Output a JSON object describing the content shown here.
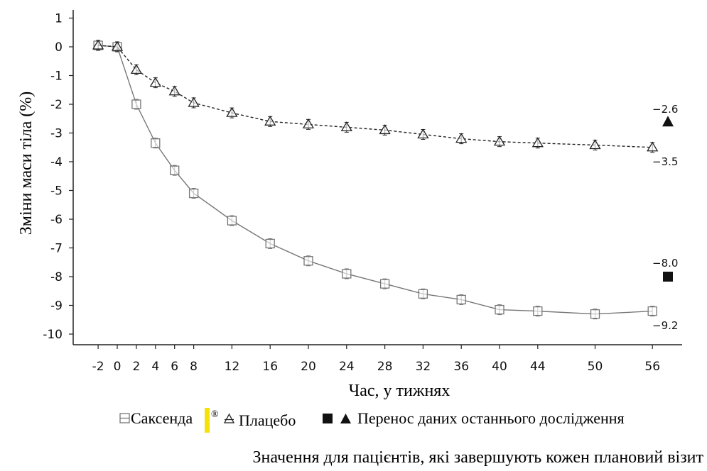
{
  "chart_data": {
    "type": "line",
    "xlabel": "Час, у тижнях",
    "ylabel": "Зміни маси тіла (%)",
    "x_ticks": [
      -2,
      0,
      2,
      4,
      6,
      8,
      12,
      16,
      20,
      24,
      28,
      32,
      36,
      40,
      44,
      50,
      56
    ],
    "ylim": [
      -10,
      1
    ],
    "y_ticks": [
      1,
      0,
      -1,
      -2,
      -3,
      -4,
      -5,
      -6,
      -7,
      -8,
      -9,
      -10
    ],
    "series": [
      {
        "name": "Саксенда®",
        "marker": "square-open",
        "line_style": "solid",
        "color": "#777777",
        "x": [
          -2,
          0,
          2,
          4,
          6,
          8,
          12,
          16,
          20,
          24,
          28,
          32,
          36,
          40,
          44,
          50,
          56
        ],
        "values": [
          0.05,
          0.0,
          -2.0,
          -3.35,
          -4.3,
          -5.1,
          -6.05,
          -6.85,
          -7.45,
          -7.9,
          -8.25,
          -8.6,
          -8.8,
          -9.15,
          -9.2,
          -9.3,
          -9.2
        ]
      },
      {
        "name": "Плацебо",
        "marker": "triangle-open",
        "line_style": "dashed",
        "color": "#222222",
        "x": [
          -2,
          0,
          2,
          4,
          6,
          8,
          12,
          16,
          20,
          24,
          28,
          32,
          36,
          40,
          44,
          50,
          56
        ],
        "values": [
          0.05,
          0.0,
          -0.8,
          -1.25,
          -1.55,
          -1.95,
          -2.3,
          -2.6,
          -2.7,
          -2.8,
          -2.9,
          -3.05,
          -3.2,
          -3.3,
          -3.35,
          -3.42,
          -3.5
        ]
      }
    ],
    "last_observation": [
      {
        "marker": "triangle-filled",
        "value": -2.6,
        "label": "−2.6"
      },
      {
        "marker": "square-filled",
        "value": -8.0,
        "label": "−8.0"
      }
    ],
    "end_labels": [
      {
        "series": "Плацебо",
        "label": "−3.5"
      },
      {
        "series": "Саксенда®",
        "label": "−9.2"
      }
    ],
    "legend": {
      "placement": "bottom",
      "items": [
        "Саксенда",
        "®",
        "Плацебо",
        "Перенос даних останнього дослідження"
      ]
    },
    "note": "Значення для пацієнтів, які завершують кожен плановий візит"
  }
}
